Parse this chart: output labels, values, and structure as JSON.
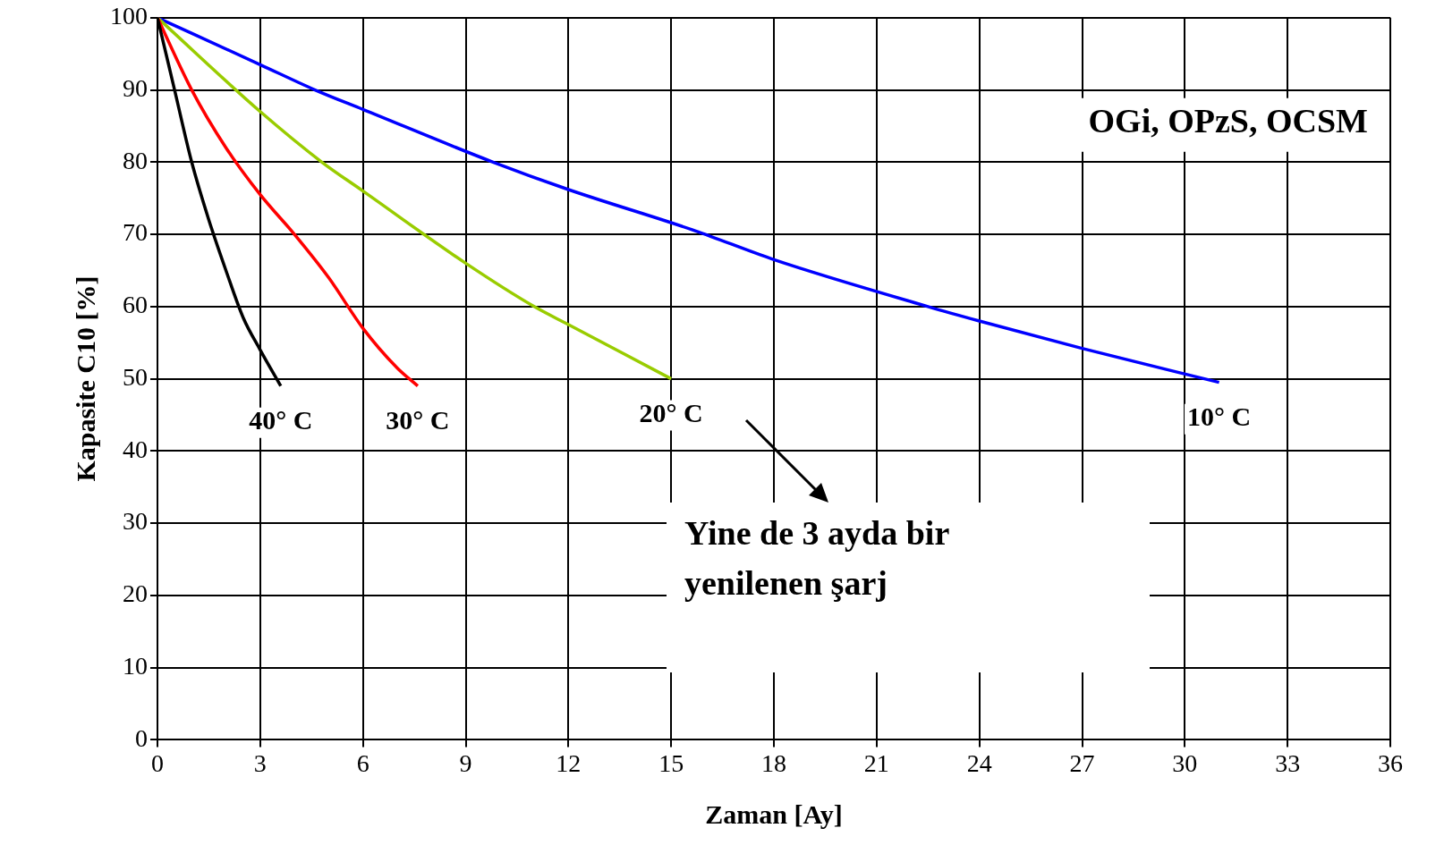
{
  "chart_data": {
    "type": "line",
    "title": "OGi, OPzS, OCSM",
    "xlabel": "Zaman [Ay]",
    "ylabel": "Kapasite C10 [%]",
    "annotations": [
      "Yine de 3 ayda bir yenilenen şarj"
    ],
    "xlim": [
      0,
      36
    ],
    "xticks": [
      0,
      3,
      6,
      9,
      12,
      15,
      18,
      21,
      24,
      27,
      30,
      33,
      36
    ],
    "ylim": [
      0,
      100
    ],
    "yticks": [
      0,
      10,
      20,
      30,
      40,
      50,
      60,
      70,
      80,
      90,
      100
    ],
    "grid": true,
    "legend": false,
    "marker": "none",
    "line_style": "solid",
    "series": [
      {
        "name": "40° C",
        "color": "#000000",
        "x": [
          0,
          0.5,
          1,
          1.5,
          2,
          2.5,
          3,
          3.6
        ],
        "values": [
          100,
          90,
          80,
          72,
          65,
          58.5,
          54,
          49
        ]
      },
      {
        "name": "30° C",
        "color": "#ff0000",
        "x": [
          0,
          1,
          2,
          3,
          4,
          5,
          6,
          7,
          7.6
        ],
        "values": [
          100,
          90,
          82,
          75.5,
          70,
          64,
          57,
          51.5,
          49
        ]
      },
      {
        "name": "20° C",
        "color": "#99cc00",
        "x": [
          0,
          3,
          4.8,
          6,
          9,
          11,
          12,
          15
        ],
        "values": [
          100,
          87,
          80,
          76,
          66,
          60,
          57.5,
          50
        ]
      },
      {
        "name": "10° C",
        "color": "#0000ff",
        "x": [
          0,
          3,
          4.6,
          6,
          9.8,
          12,
          15.7,
          18,
          22.5,
          24,
          27,
          31
        ],
        "values": [
          100,
          93.5,
          90,
          87.3,
          80,
          76.2,
          70.5,
          66.5,
          60,
          58,
          54.2,
          49.5
        ]
      }
    ]
  }
}
